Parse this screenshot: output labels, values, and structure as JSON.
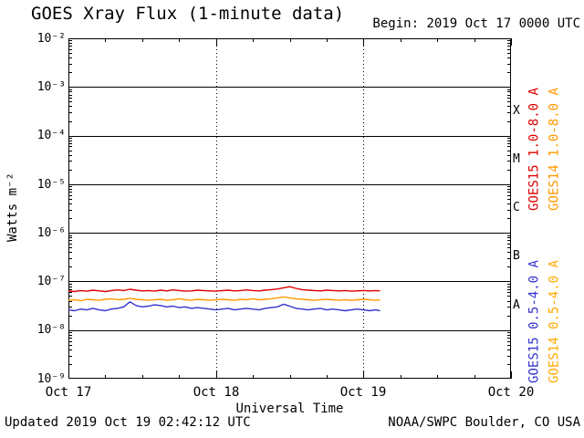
{
  "header": {
    "title": "GOES Xray Flux (1-minute data)",
    "begin_label": "Begin: 2019 Oct 17 0000 UTC"
  },
  "axes": {
    "ylabel": "Watts m⁻²",
    "xlabel": "Universal Time",
    "y_tick_labels": [
      "10⁻²",
      "10⁻³",
      "10⁻⁴",
      "10⁻⁵",
      "10⁻⁶",
      "10⁻⁷",
      "10⁻⁸",
      "10⁻⁹"
    ],
    "x_tick_labels": [
      "Oct 17",
      "Oct 18",
      "Oct 19",
      "Oct 20"
    ]
  },
  "flare_classes": [
    "X",
    "M",
    "C",
    "B",
    "A"
  ],
  "legend": [
    {
      "label": "GOES15 1.0-8.0 A",
      "color": "#dd0000"
    },
    {
      "label": "GOES14 1.0-8.0 A",
      "color": "#ff9900"
    },
    {
      "label": "GOES15 0.5-4.0 A",
      "color": "#3333cc"
    },
    {
      "label": "GOES14 0.5-4.0 A",
      "color": "#ffaa00"
    }
  ],
  "footer": {
    "updated": "Updated 2019 Oct 19 02:42:12 UTC",
    "source": "NOAA/SWPC Boulder, CO USA"
  },
  "chart_data": {
    "type": "line",
    "title": "GOES Xray Flux (1-minute data)",
    "xlabel": "Universal Time",
    "ylabel": "Watts m⁻²",
    "x_unit": "hours since 2019 Oct 17 0000 UTC",
    "x_range_hours": [
      0,
      72
    ],
    "y_scale": "log",
    "ylim": [
      1e-09,
      0.01
    ],
    "grid": {
      "horizontal_solid_decades": [
        0.001,
        0.0001,
        1e-05,
        1e-06,
        1e-07,
        1e-08
      ],
      "vertical_dotted_hours": [
        24,
        48
      ]
    },
    "day_ticks": [
      {
        "hour": 0,
        "label": "Oct 17"
      },
      {
        "hour": 24,
        "label": "Oct 18"
      },
      {
        "hour": 48,
        "label": "Oct 19"
      },
      {
        "hour": 72,
        "label": "Oct 20"
      }
    ],
    "flare_class_bands": [
      {
        "label": "A",
        "range": [
          1e-08,
          1e-07
        ]
      },
      {
        "label": "B",
        "range": [
          1e-07,
          1e-06
        ]
      },
      {
        "label": "C",
        "range": [
          1e-06,
          1e-05
        ]
      },
      {
        "label": "M",
        "range": [
          1e-05,
          0.0001
        ]
      },
      {
        "label": "X",
        "range": [
          0.0001,
          0.001
        ]
      }
    ],
    "series": [
      {
        "name": "GOES15 1.0-8.0 A",
        "color": "#dd0000",
        "x": [
          0,
          1,
          2,
          3,
          4,
          5,
          6,
          7,
          8,
          9,
          10,
          11,
          12,
          13,
          14,
          15,
          16,
          17,
          18,
          19,
          20,
          21,
          22,
          23,
          24,
          25,
          26,
          27,
          28,
          29,
          30,
          31,
          32,
          33,
          34,
          35,
          36,
          37,
          38,
          39,
          40,
          41,
          42,
          43,
          44,
          45,
          46,
          47,
          48,
          49,
          50,
          50.7
        ],
        "y": [
          6.4e-08,
          6.2e-08,
          6.5e-08,
          6.3e-08,
          6.6e-08,
          6.4e-08,
          6.2e-08,
          6.5e-08,
          6.7e-08,
          6.5e-08,
          6.9e-08,
          6.6e-08,
          6.4e-08,
          6.5e-08,
          6.3e-08,
          6.6e-08,
          6.4e-08,
          6.7e-08,
          6.5e-08,
          6.3e-08,
          6.4e-08,
          6.6e-08,
          6.5e-08,
          6.4e-08,
          6.3e-08,
          6.5e-08,
          6.6e-08,
          6.4e-08,
          6.5e-08,
          6.7e-08,
          6.5e-08,
          6.4e-08,
          6.6e-08,
          6.8e-08,
          7e-08,
          7.4e-08,
          7.8e-08,
          7.2e-08,
          6.8e-08,
          6.6e-08,
          6.5e-08,
          6.4e-08,
          6.6e-08,
          6.5e-08,
          6.4e-08,
          6.5e-08,
          6.3e-08,
          6.4e-08,
          6.5e-08,
          6.4e-08,
          6.5e-08,
          6.4e-08
        ]
      },
      {
        "name": "GOES14 1.0-8.0 A",
        "color": "#ff9900",
        "x": [
          0,
          1,
          2,
          3,
          4,
          5,
          6,
          7,
          8,
          9,
          10,
          11,
          12,
          13,
          14,
          15,
          16,
          17,
          18,
          19,
          20,
          21,
          22,
          23,
          24,
          25,
          26,
          27,
          28,
          29,
          30,
          31,
          32,
          33,
          34,
          35,
          36,
          37,
          38,
          39,
          40,
          41,
          42,
          43,
          44,
          45,
          46,
          47,
          48,
          49,
          50,
          50.7
        ],
        "y": [
          4.1e-08,
          4.2e-08,
          4e-08,
          4.3e-08,
          4.2e-08,
          4.1e-08,
          4.3e-08,
          4.4e-08,
          4.2e-08,
          4.3e-08,
          4.5e-08,
          4.3e-08,
          4.2e-08,
          4.1e-08,
          4.2e-08,
          4.3e-08,
          4.1e-08,
          4.2e-08,
          4.4e-08,
          4.2e-08,
          4.1e-08,
          4.3e-08,
          4.2e-08,
          4.1e-08,
          4.2e-08,
          4.3e-08,
          4.2e-08,
          4.1e-08,
          4.3e-08,
          4.2e-08,
          4.4e-08,
          4.2e-08,
          4.3e-08,
          4.4e-08,
          4.6e-08,
          4.8e-08,
          4.6e-08,
          4.4e-08,
          4.3e-08,
          4.2e-08,
          4.1e-08,
          4.2e-08,
          4.3e-08,
          4.2e-08,
          4.1e-08,
          4.2e-08,
          4.1e-08,
          4.2e-08,
          4.3e-08,
          4.2e-08,
          4.1e-08,
          4.2e-08
        ]
      },
      {
        "name": "GOES15 0.5-4.0 A",
        "color": "#3333cc",
        "x": [
          0,
          1,
          2,
          3,
          4,
          5,
          6,
          7,
          8,
          9,
          10,
          11,
          12,
          13,
          14,
          15,
          16,
          17,
          18,
          19,
          20,
          21,
          22,
          23,
          24,
          25,
          26,
          27,
          28,
          29,
          30,
          31,
          32,
          33,
          34,
          35,
          36,
          37,
          38,
          39,
          40,
          41,
          42,
          43,
          44,
          45,
          46,
          47,
          48,
          49,
          50,
          50.7
        ],
        "y": [
          2.6e-08,
          2.5e-08,
          2.7e-08,
          2.6e-08,
          2.8e-08,
          2.6e-08,
          2.5e-08,
          2.7e-08,
          2.8e-08,
          3e-08,
          3.8e-08,
          3.2e-08,
          3e-08,
          3.1e-08,
          3.3e-08,
          3.2e-08,
          3e-08,
          3.1e-08,
          2.9e-08,
          3e-08,
          2.8e-08,
          2.9e-08,
          2.8e-08,
          2.7e-08,
          2.6e-08,
          2.7e-08,
          2.8e-08,
          2.6e-08,
          2.7e-08,
          2.8e-08,
          2.7e-08,
          2.6e-08,
          2.8e-08,
          2.9e-08,
          3e-08,
          3.4e-08,
          3.1e-08,
          2.8e-08,
          2.7e-08,
          2.6e-08,
          2.7e-08,
          2.8e-08,
          2.6e-08,
          2.7e-08,
          2.6e-08,
          2.5e-08,
          2.6e-08,
          2.7e-08,
          2.6e-08,
          2.5e-08,
          2.6e-08,
          2.5e-08
        ]
      }
    ],
    "legend_position": "right-rotated"
  }
}
